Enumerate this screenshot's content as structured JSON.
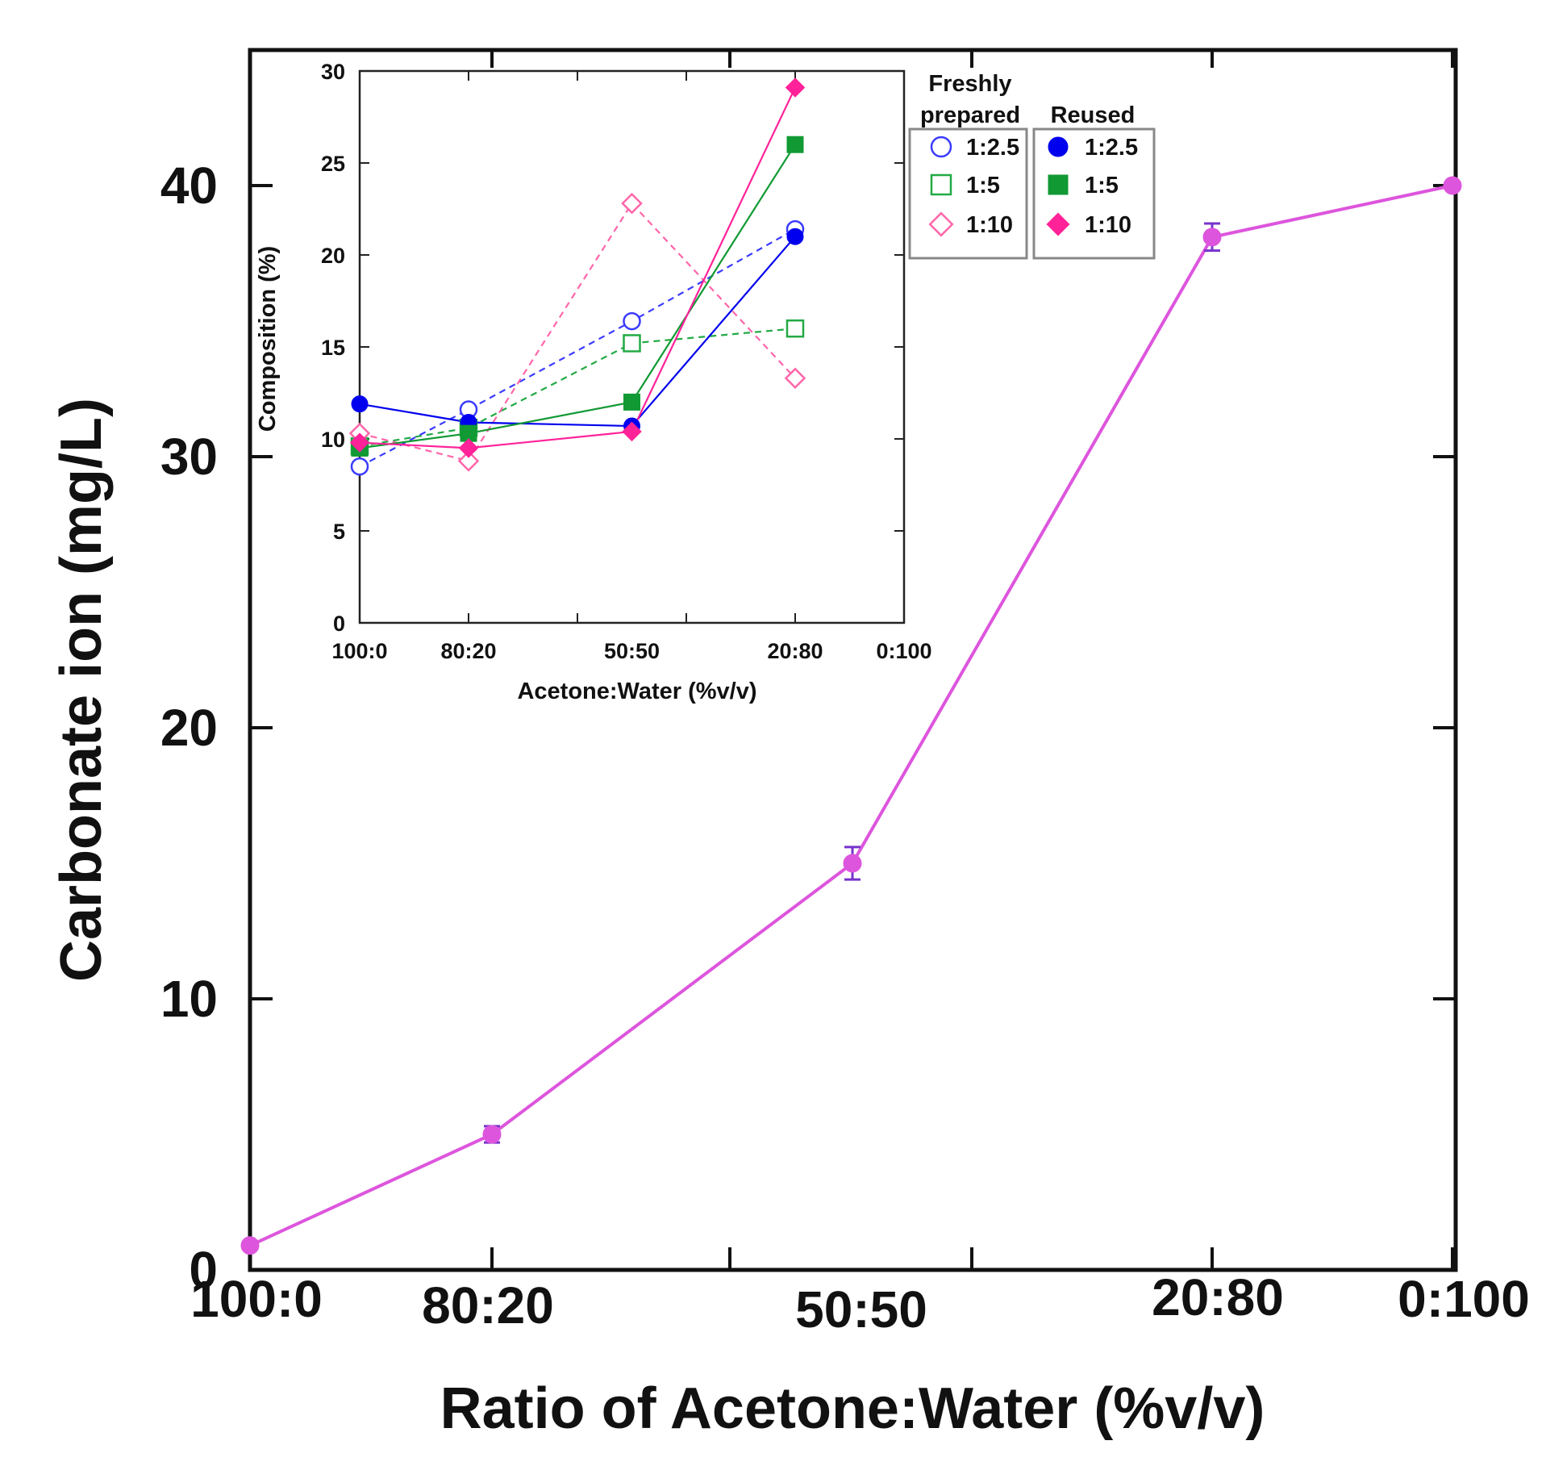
{
  "chart_data": [
    {
      "type": "line",
      "name": "main",
      "categories": [
        "100:0",
        "80:20",
        "50:50",
        "20:80",
        "0:100"
      ],
      "series": [
        {
          "name": "Carbonate ion",
          "color": "#dd55dd",
          "marker": "circle",
          "values": [
            0.9,
            5.0,
            15.0,
            38.1,
            40.0
          ],
          "errors": [
            0.1,
            0.3,
            0.6,
            0.5,
            0.1
          ]
        }
      ],
      "xlabel": "Ratio of Acetone:Water (%v/v)",
      "ylabel": "Carbonate ion  (mg/L)",
      "ylim": [
        0,
        45
      ],
      "yticks": [
        0,
        10,
        20,
        30,
        40
      ]
    },
    {
      "type": "line",
      "name": "inset",
      "categories": [
        "100:0",
        "80:20",
        "50:50",
        "20:80",
        "0:100"
      ],
      "x_positions": [
        0,
        20,
        50,
        80,
        100
      ],
      "series": [
        {
          "name": "1:2.5",
          "group": "Freshly prepared",
          "color": "#3b3bff",
          "marker": "circle-open",
          "dashed": true,
          "x": [
            0,
            20,
            50,
            80
          ],
          "values": [
            8.5,
            11.6,
            16.4,
            21.4
          ]
        },
        {
          "name": "1:5",
          "group": "Freshly prepared",
          "color": "#22aa44",
          "marker": "square-open",
          "dashed": true,
          "x": [
            0,
            20,
            50,
            80
          ],
          "values": [
            9.6,
            10.6,
            15.2,
            16.0
          ]
        },
        {
          "name": "1:10",
          "group": "Freshly prepared",
          "color": "#ff66aa",
          "marker": "diamond-open",
          "dashed": true,
          "x": [
            0,
            20,
            50,
            80
          ],
          "values": [
            10.3,
            8.8,
            22.8,
            13.3
          ]
        },
        {
          "name": "1:2.5",
          "group": "Reused",
          "color": "#0000ee",
          "marker": "circle-filled",
          "dashed": false,
          "x": [
            0,
            20,
            50,
            80
          ],
          "values": [
            11.9,
            10.9,
            10.7,
            21.0
          ]
        },
        {
          "name": "1:5",
          "group": "Reused",
          "color": "#119933",
          "marker": "square-filled",
          "dashed": false,
          "x": [
            0,
            20,
            50,
            80
          ],
          "values": [
            9.5,
            10.3,
            12.0,
            26.0
          ]
        },
        {
          "name": "1:10",
          "group": "Reused",
          "color": "#ff2299",
          "marker": "diamond-filled",
          "dashed": false,
          "x": [
            0,
            20,
            50,
            80
          ],
          "values": [
            9.8,
            9.5,
            10.4,
            29.1
          ]
        }
      ],
      "xlabel": "Acetone:Water (%v/v)",
      "ylabel": "Composition (%)",
      "ylim": [
        0,
        30
      ],
      "yticks": [
        0,
        5,
        10,
        15,
        20,
        25,
        30
      ],
      "legend": {
        "placement": "right",
        "fresh_title_line1": "Freshly",
        "fresh_title_line2": "prepared",
        "reused_title": "Reused"
      }
    }
  ]
}
